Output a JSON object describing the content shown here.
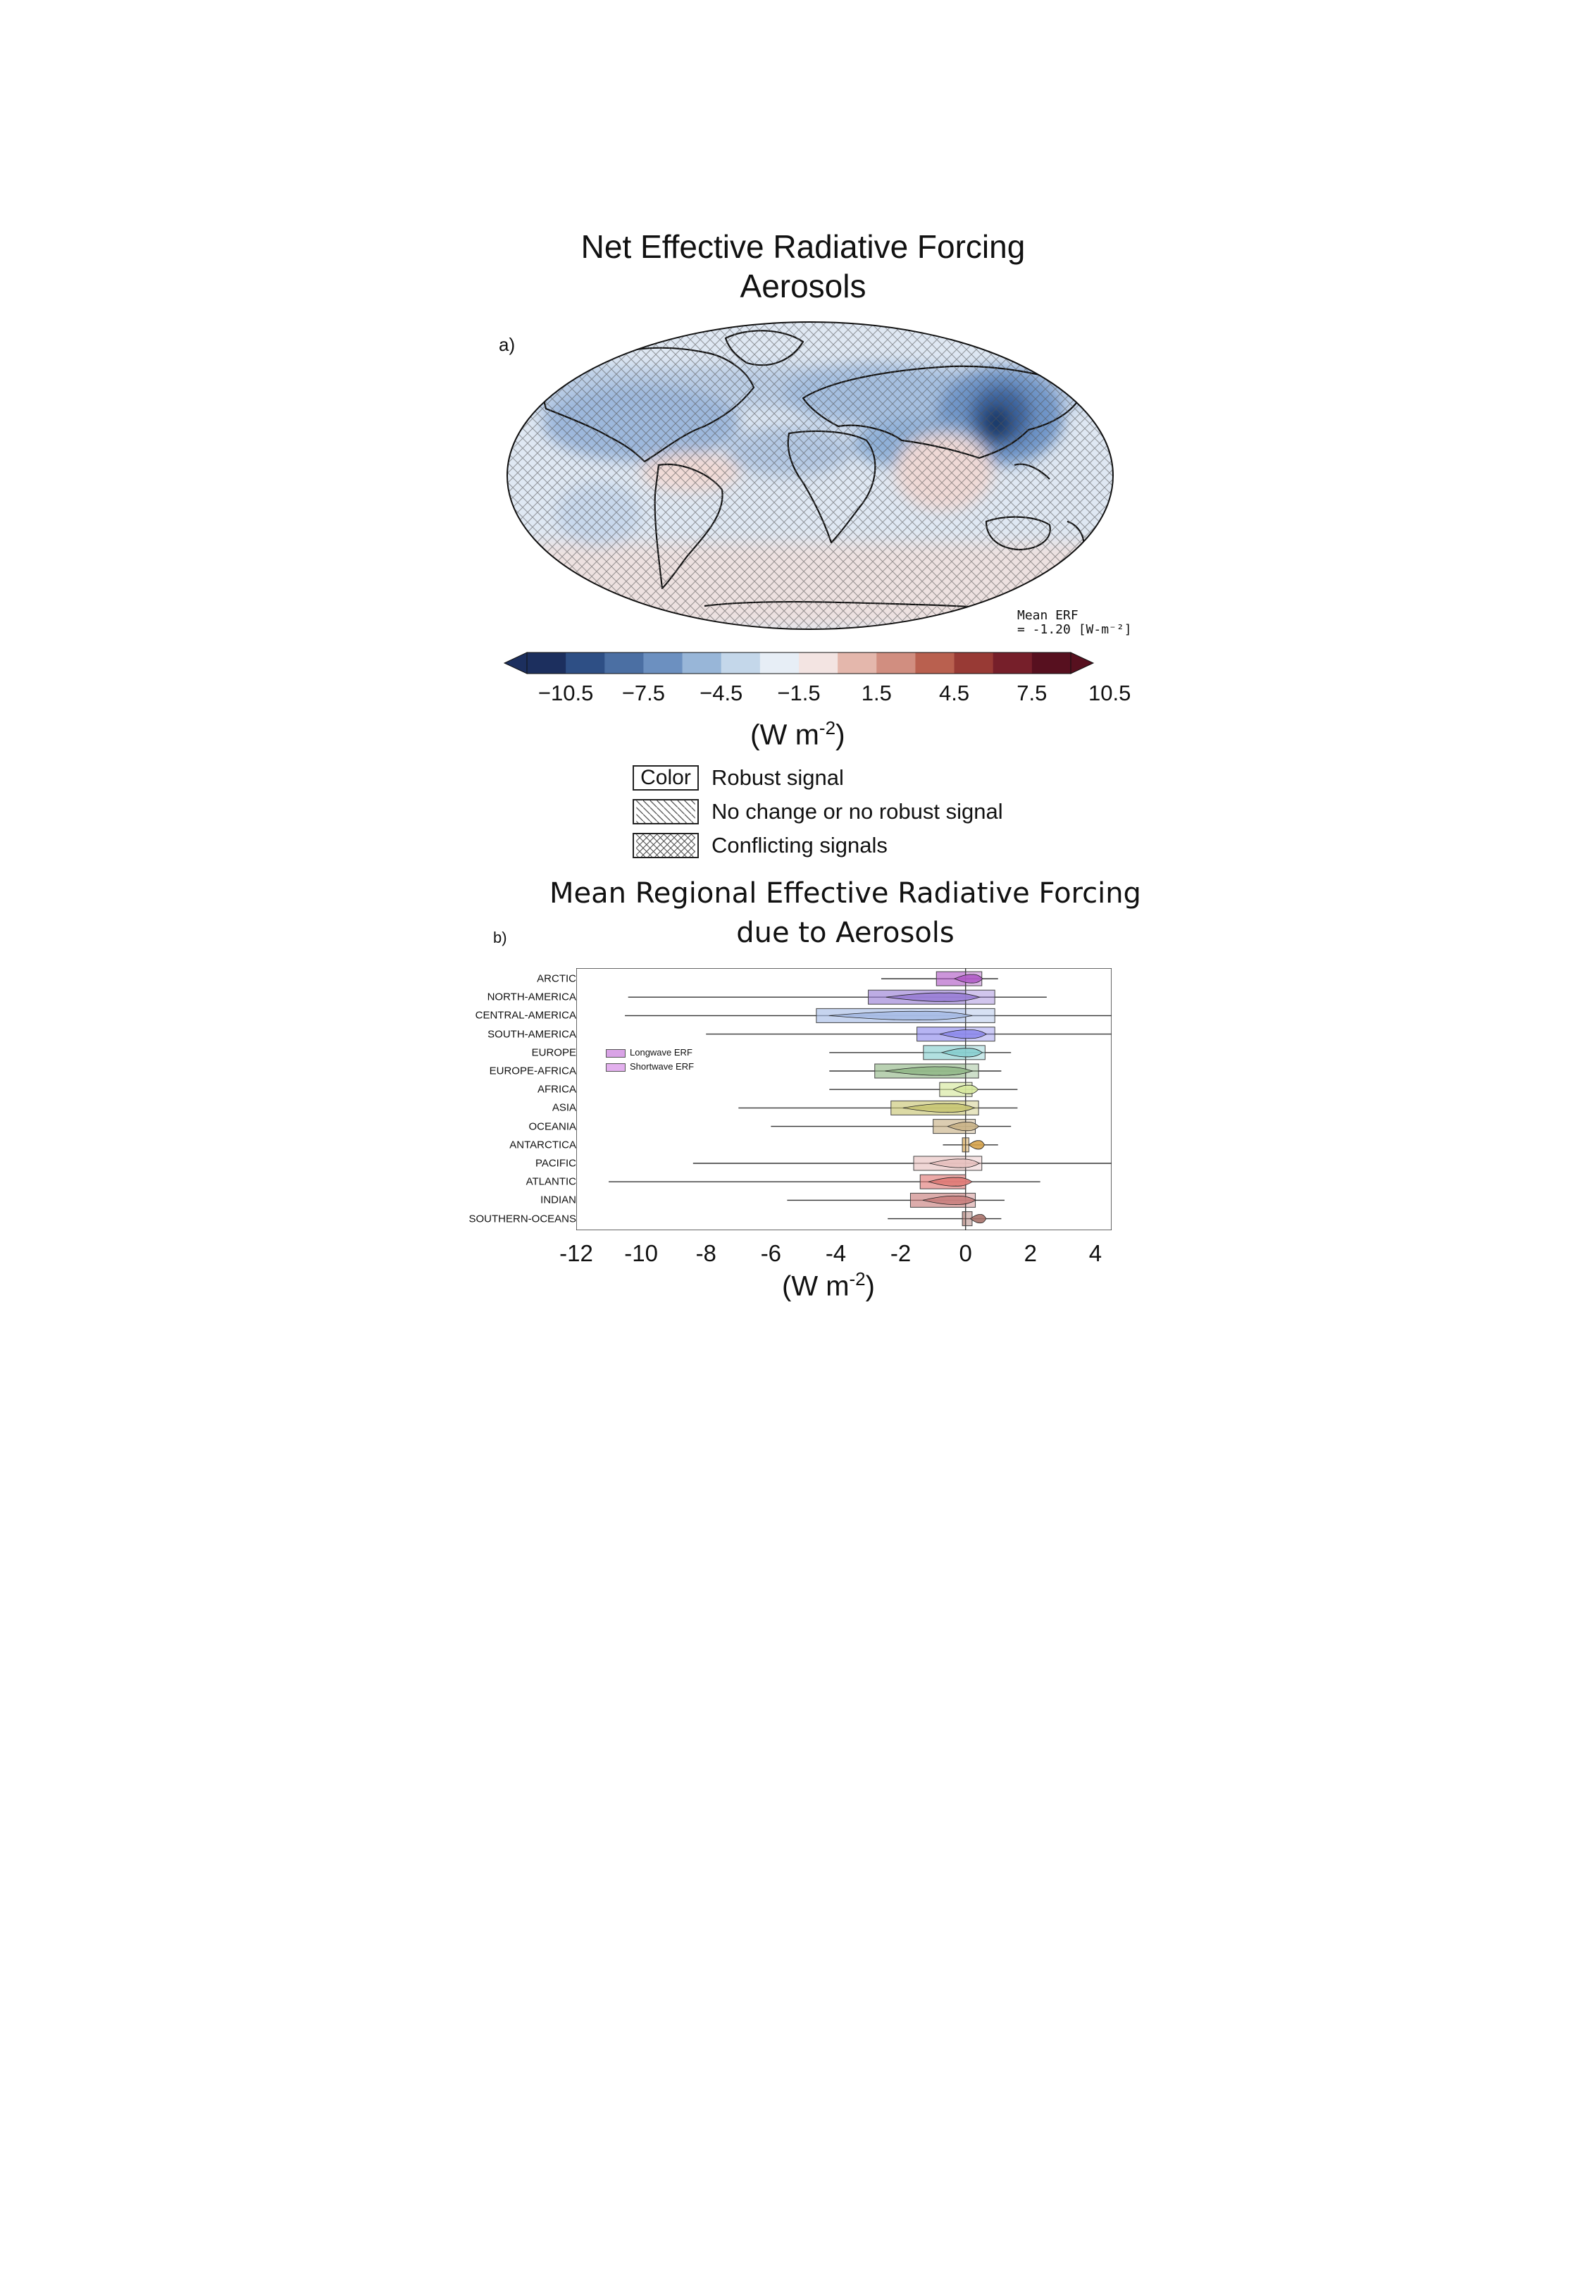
{
  "panel_a": {
    "label": "a)",
    "title_line1": "Net Effective Radiative Forcing",
    "title_line2": "Aerosols",
    "mean_note_line1": "Mean ERF",
    "mean_note_line2": "= -1.20 [W-m⁻²]",
    "colorbar_ticks": [
      "−10.5",
      "−7.5",
      "−4.5",
      "−1.5",
      "1.5",
      "4.5",
      "7.5",
      "10.5"
    ],
    "colorbar_colors": [
      "#1c2f5e",
      "#2e4f85",
      "#4b6fa3",
      "#6c90c0",
      "#98b6d8",
      "#c4d7ea",
      "#e7eef6",
      "#f3e4e2",
      "#e4b7ac",
      "#d18e80",
      "#b9604f",
      "#983a35",
      "#761f2a",
      "#57101f"
    ],
    "unit_main": "(W m",
    "unit_sup": "-2",
    "unit_close": ")",
    "legend": [
      {
        "box_text": "Color",
        "text": "Robust signal"
      },
      {
        "box_text": "",
        "text": "No change or no robust signal"
      },
      {
        "box_text": "",
        "text": "Conflicting signals"
      }
    ]
  },
  "panel_b": {
    "label": "b)",
    "title_line1": "Mean Regional Effective Radiative Forcing",
    "title_line2": "due to Aerosols",
    "legend_longwave": "Longwave ERF",
    "legend_shortwave": "Shortwave ERF",
    "unit_main": "(W m",
    "unit_sup": "-2",
    "unit_close": ")"
  },
  "chart_data": {
    "type": "bar",
    "orientation": "horizontal",
    "title": "Mean Regional Effective Radiative Forcing due to Aerosols",
    "xlabel": "(W m-2)",
    "xlim": [
      -12,
      4.5
    ],
    "xticks": [
      -12,
      -10,
      -8,
      -6,
      -4,
      -2,
      0,
      2,
      4
    ],
    "categories": [
      "ARCTIC",
      "NORTH-AMERICA",
      "CENTRAL-AMERICA",
      "SOUTH-AMERICA",
      "EUROPE",
      "EUROPE-AFRICA",
      "AFRICA",
      "ASIA",
      "OCEANIA",
      "ANTARCTICA",
      "PACIFIC",
      "ATLANTIC",
      "INDIAN",
      "SOUTHERN-OCEANS"
    ],
    "colors": [
      "#b05cc6",
      "#9a7fd6",
      "#a7bde6",
      "#8f8cec",
      "#88cfd0",
      "#93b989",
      "#d6e89c",
      "#c9c675",
      "#c9b287",
      "#d5a24a",
      "#e8c2c0",
      "#e07b78",
      "#c97f7e",
      "#a7726a"
    ],
    "series": [
      {
        "name": "Shortwave ERF",
        "values": [
          -0.9,
          -3.0,
          -4.6,
          -1.5,
          -1.3,
          -2.8,
          -0.8,
          -2.3,
          -1.0,
          -0.1,
          -1.6,
          -1.4,
          -1.7,
          -0.1
        ]
      },
      {
        "name": "Longwave ERF",
        "values": [
          0.5,
          0.9,
          0.9,
          0.9,
          0.6,
          0.4,
          0.2,
          0.4,
          0.3,
          0.1,
          0.5,
          0.0,
          0.3,
          0.2
        ]
      }
    ],
    "ranges": [
      [
        -2.6,
        1.0
      ],
      [
        -10.4,
        2.5
      ],
      [
        -10.5,
        4.6
      ],
      [
        -8.0,
        4.6
      ],
      [
        -4.2,
        1.4
      ],
      [
        -4.2,
        1.1
      ],
      [
        -4.2,
        1.6
      ],
      [
        -7.0,
        1.6
      ],
      [
        -6.0,
        1.4
      ],
      [
        -0.7,
        1.0
      ],
      [
        -8.4,
        4.6
      ],
      [
        -11.0,
        2.3
      ],
      [
        -5.5,
        1.2
      ],
      [
        -2.4,
        1.1
      ]
    ]
  }
}
